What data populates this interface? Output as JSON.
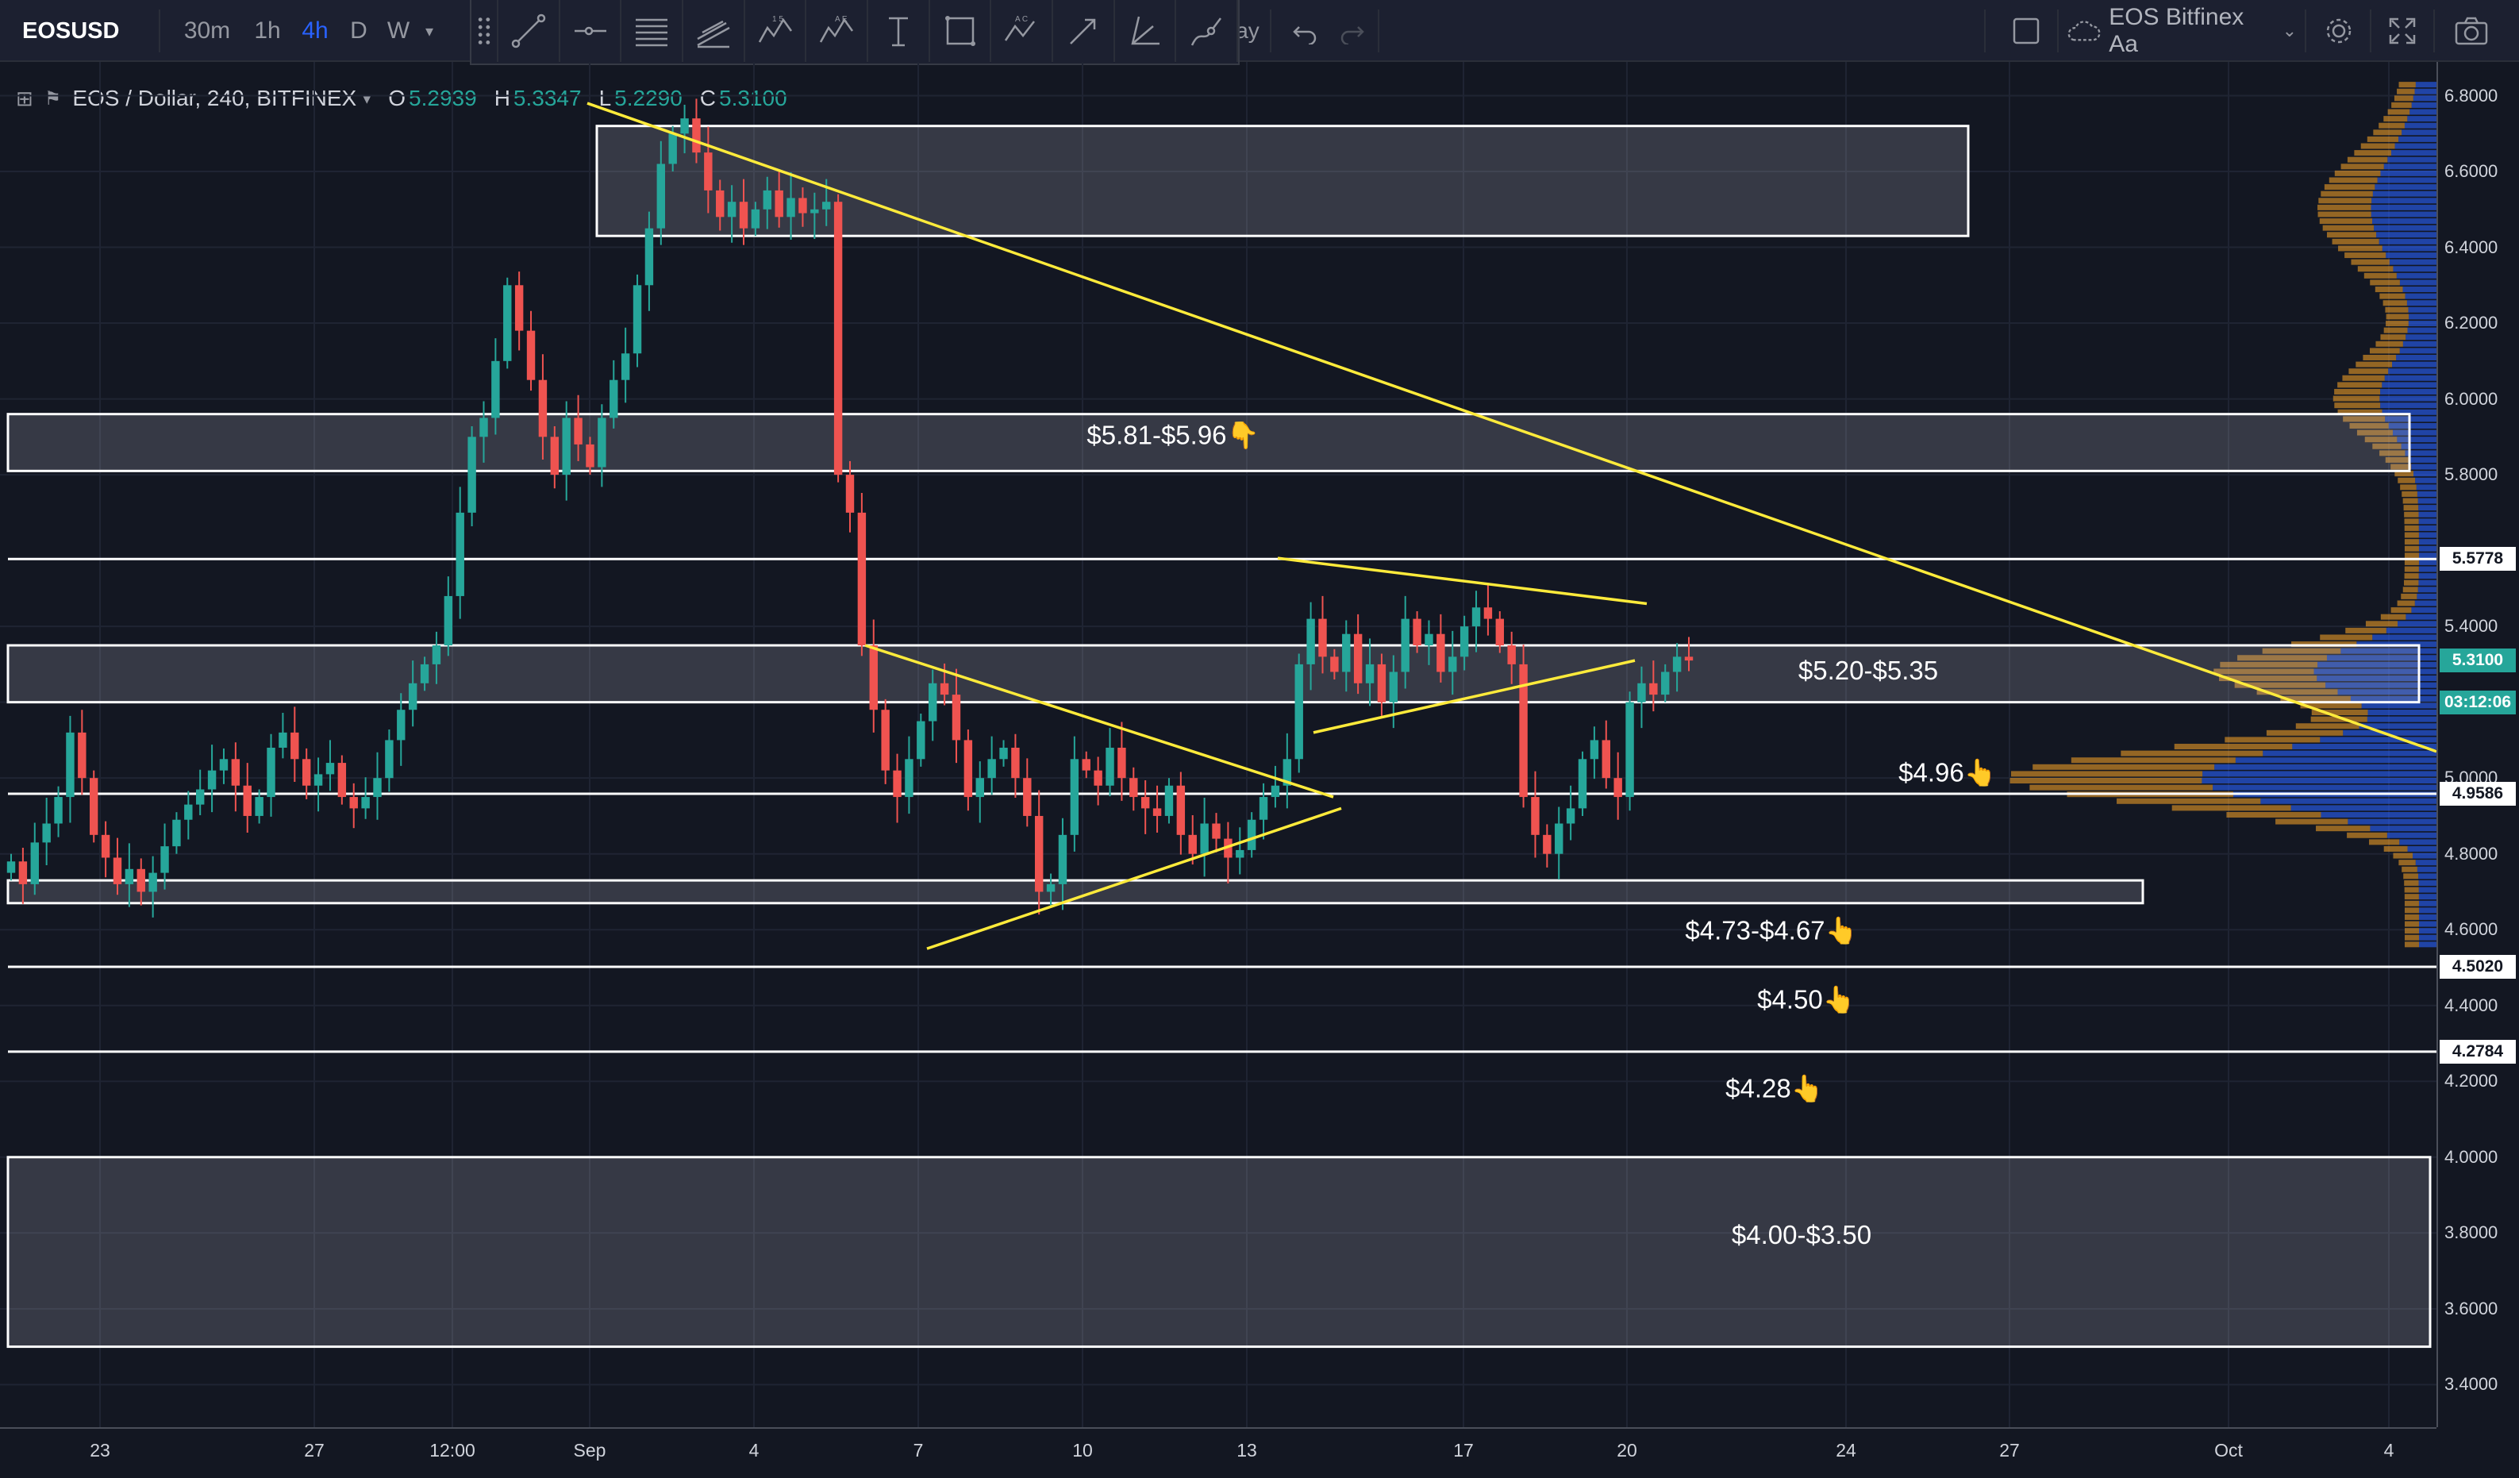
{
  "toolbar": {
    "symbol": "EOSUSD",
    "timeframes": [
      "30m",
      "1h",
      "4h",
      "D",
      "W"
    ],
    "active_timeframe": "4h",
    "hidden_tab_fragment": "ay",
    "chart_name": "EOS Bitfinex Aa",
    "drawing_tools": [
      "trend-line-icon",
      "horizontal-ray-icon",
      "fib-retracement-icon",
      "fib-channel-icon",
      "elliott-wave-icon",
      "abcde-pattern-icon",
      "text-tool-icon",
      "rectangle-icon",
      "abcd-pattern-icon",
      "arrow-icon",
      "angle-icon",
      "brush-icon"
    ]
  },
  "legend": {
    "title": "EOS / Dollar, 240, BITFINEX",
    "o_label": "O",
    "o": "5.2939",
    "h_label": "H",
    "h": "5.3347",
    "l_label": "L",
    "l": "5.2290",
    "c_label": "C",
    "c": "5.3100"
  },
  "price_axis": {
    "ticks": [
      "6.8000",
      "6.6000",
      "6.4000",
      "6.2000",
      "6.0000",
      "5.8000",
      "5.4000",
      "5.2000",
      "5.0000",
      "4.8000",
      "4.6000",
      "4.4000",
      "4.2000",
      "4.0000",
      "3.8000",
      "3.6000",
      "3.4000"
    ],
    "labels": [
      {
        "text": "5.5778",
        "value": 5.5778,
        "bg": "#ffffff",
        "fg": "#131722"
      },
      {
        "text": "5.3100",
        "value": 5.31,
        "bg": "#26a69a",
        "fg": "#ffffff"
      },
      {
        "text": "03:12:06",
        "value": 5.2,
        "bg": "#26a69a",
        "fg": "#ffffff"
      },
      {
        "text": "4.9586",
        "value": 4.9586,
        "bg": "#ffffff",
        "fg": "#131722"
      },
      {
        "text": "4.5020",
        "value": 4.502,
        "bg": "#ffffff",
        "fg": "#131722"
      },
      {
        "text": "4.2784",
        "value": 4.2784,
        "bg": "#ffffff",
        "fg": "#131722"
      }
    ]
  },
  "time_axis": {
    "ticks": [
      "23",
      "27",
      "12:00",
      "Sep",
      "4",
      "7",
      "10",
      "13",
      "17",
      "20",
      "24",
      "27",
      "Oct",
      "4"
    ]
  },
  "zones": {
    "z1": "$5.81-$5.96👇",
    "z2": "$5.20-$5.35",
    "z3": "$4.96👆",
    "z4": "$4.73-$4.67👆",
    "z5": "$4.50👆",
    "z6": "$4.28👆",
    "z7": "$4.00-$3.50"
  },
  "colors": {
    "background": "#131722",
    "up": "#26a69a",
    "down": "#ef5350",
    "trendline": "#ffeb3b",
    "level": "#ffffff",
    "vp_up": "#2962ff",
    "vp_down": "#ffa726"
  },
  "chart_data": {
    "type": "candlestick",
    "symbol": "EOS / Dollar",
    "interval": "240",
    "exchange": "BITFINEX",
    "ylim": [
      3.4,
      6.85
    ],
    "support_resistance": {
      "horizontal_levels": [
        5.5778,
        4.9586,
        4.502,
        4.2784
      ],
      "zones": [
        [
          5.81,
          5.96
        ],
        [
          5.2,
          5.35
        ],
        [
          4.67,
          4.73
        ],
        [
          3.5,
          4.0
        ],
        [
          6.43,
          6.72
        ]
      ]
    },
    "last_price": 5.31,
    "countdown": "03:12:06",
    "closes": [
      4.78,
      4.72,
      4.83,
      4.88,
      4.95,
      5.12,
      5.0,
      4.85,
      4.79,
      4.72,
      4.76,
      4.7,
      4.75,
      4.82,
      4.89,
      4.93,
      4.97,
      5.02,
      5.05,
      4.98,
      4.9,
      4.95,
      5.08,
      5.12,
      5.05,
      4.98,
      5.01,
      5.04,
      4.95,
      4.92,
      4.95,
      5.0,
      5.1,
      5.18,
      5.25,
      5.3,
      5.35,
      5.48,
      5.7,
      5.9,
      5.95,
      6.1,
      6.3,
      6.18,
      6.05,
      5.9,
      5.8,
      5.95,
      5.88,
      5.82,
      5.95,
      6.05,
      6.12,
      6.3,
      6.45,
      6.62,
      6.7,
      6.74,
      6.65,
      6.55,
      6.48,
      6.52,
      6.45,
      6.5,
      6.55,
      6.48,
      6.53,
      6.49,
      6.5,
      6.52,
      5.8,
      5.7,
      5.35,
      5.18,
      5.02,
      4.95,
      5.05,
      5.15,
      5.25,
      5.22,
      5.1,
      4.95,
      5.0,
      5.05,
      5.08,
      5.0,
      4.9,
      4.7,
      4.72,
      4.85,
      5.05,
      5.02,
      4.98,
      5.08,
      5.0,
      4.95,
      4.92,
      4.9,
      4.98,
      4.85,
      4.8,
      4.88,
      4.84,
      4.79,
      4.81,
      4.89,
      4.95,
      4.98,
      5.05,
      5.3,
      5.42,
      5.32,
      5.28,
      5.38,
      5.25,
      5.3,
      5.2,
      5.28,
      5.42,
      5.35,
      5.38,
      5.28,
      5.32,
      5.4,
      5.45,
      5.42,
      5.35,
      5.3,
      4.95,
      4.85,
      4.8,
      4.88,
      4.92,
      5.05,
      5.1,
      5.0,
      4.95,
      5.2,
      5.25,
      5.22,
      5.28,
      5.32,
      5.31
    ],
    "trendlines": [
      {
        "from": [
          0,
          6.78
        ],
        "to": [
          1.0,
          5.07
        ]
      },
      {
        "from": [
          0.37,
          5.35
        ],
        "to": [
          0.59,
          4.95
        ]
      },
      {
        "from": [
          0.41,
          4.55
        ],
        "to": [
          0.59,
          4.92
        ]
      },
      {
        "from": [
          0.55,
          5.58
        ],
        "to": [
          0.72,
          5.46
        ]
      },
      {
        "from": [
          0.56,
          5.12
        ],
        "to": [
          0.72,
          5.31
        ]
      }
    ],
    "volume_profile": "present"
  }
}
